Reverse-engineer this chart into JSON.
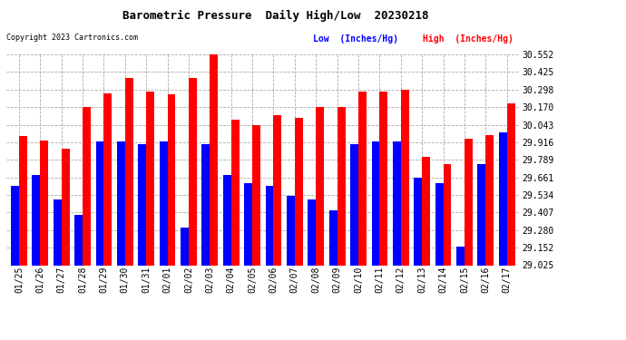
{
  "title": "Barometric Pressure  Daily High/Low  20230218",
  "copyright": "Copyright 2023 Cartronics.com",
  "legend_low": "Low  (Inches/Hg)",
  "legend_high": "High  (Inches/Hg)",
  "dates": [
    "01/25",
    "01/26",
    "01/27",
    "01/28",
    "01/29",
    "01/30",
    "01/31",
    "02/01",
    "02/02",
    "02/03",
    "02/04",
    "02/05",
    "02/06",
    "02/07",
    "02/08",
    "02/09",
    "02/10",
    "02/11",
    "02/12",
    "02/13",
    "02/14",
    "02/15",
    "02/16",
    "02/17"
  ],
  "high_values": [
    29.96,
    29.93,
    29.87,
    30.17,
    30.27,
    30.38,
    30.28,
    30.26,
    30.38,
    30.552,
    30.08,
    30.043,
    30.11,
    30.09,
    30.17,
    30.17,
    30.28,
    30.28,
    30.298,
    29.81,
    29.76,
    29.94,
    29.97,
    30.2
  ],
  "low_values": [
    29.6,
    29.68,
    29.5,
    29.39,
    29.92,
    29.92,
    29.9,
    29.92,
    29.3,
    29.9,
    29.68,
    29.62,
    29.6,
    29.53,
    29.5,
    29.42,
    29.9,
    29.92,
    29.92,
    29.66,
    29.62,
    29.16,
    29.76,
    29.99
  ],
  "ylim_low": 29.025,
  "ylim_high": 30.552,
  "yticks": [
    29.025,
    29.152,
    29.28,
    29.407,
    29.534,
    29.661,
    29.789,
    29.916,
    30.043,
    30.17,
    30.298,
    30.425,
    30.552
  ],
  "bg_color": "#ffffff",
  "bar_color_high": "#ff0000",
  "bar_color_low": "#0000ff",
  "grid_color": "#aaaaaa",
  "title_color": "#000000",
  "copyright_color": "#000000",
  "legend_low_color": "#0000ff",
  "legend_high_color": "#ff0000",
  "bar_width": 0.38,
  "figwidth": 6.9,
  "figheight": 3.75,
  "dpi": 100
}
